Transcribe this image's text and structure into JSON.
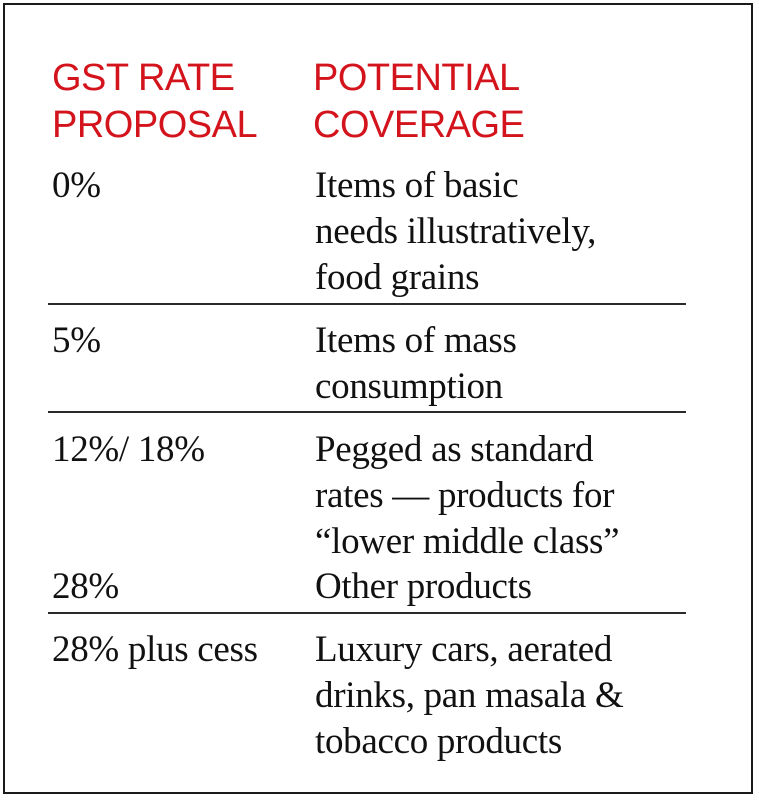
{
  "header": {
    "rate_label": "GST RATE\nPROPOSAL",
    "coverage_label": "POTENTIAL\nCOVERAGE"
  },
  "rows": [
    {
      "rate": "0%",
      "coverage": "Items of basic\nneeds illustratively,\nfood grains"
    },
    {
      "rate": "5%",
      "coverage": "Items of mass\nconsumption"
    },
    {
      "rate": "12%/ 18%",
      "coverage": "Pegged as standard\nrates — products for\n“lower middle class”"
    },
    {
      "rate": "28%",
      "coverage": "Other products"
    },
    {
      "rate": "28% plus cess",
      "coverage": "Luxury cars, aerated\ndrinks, pan masala &\ntobacco products"
    }
  ],
  "colors": {
    "header": "#d4141c",
    "text": "#111111",
    "border": "#1a1a1a"
  }
}
